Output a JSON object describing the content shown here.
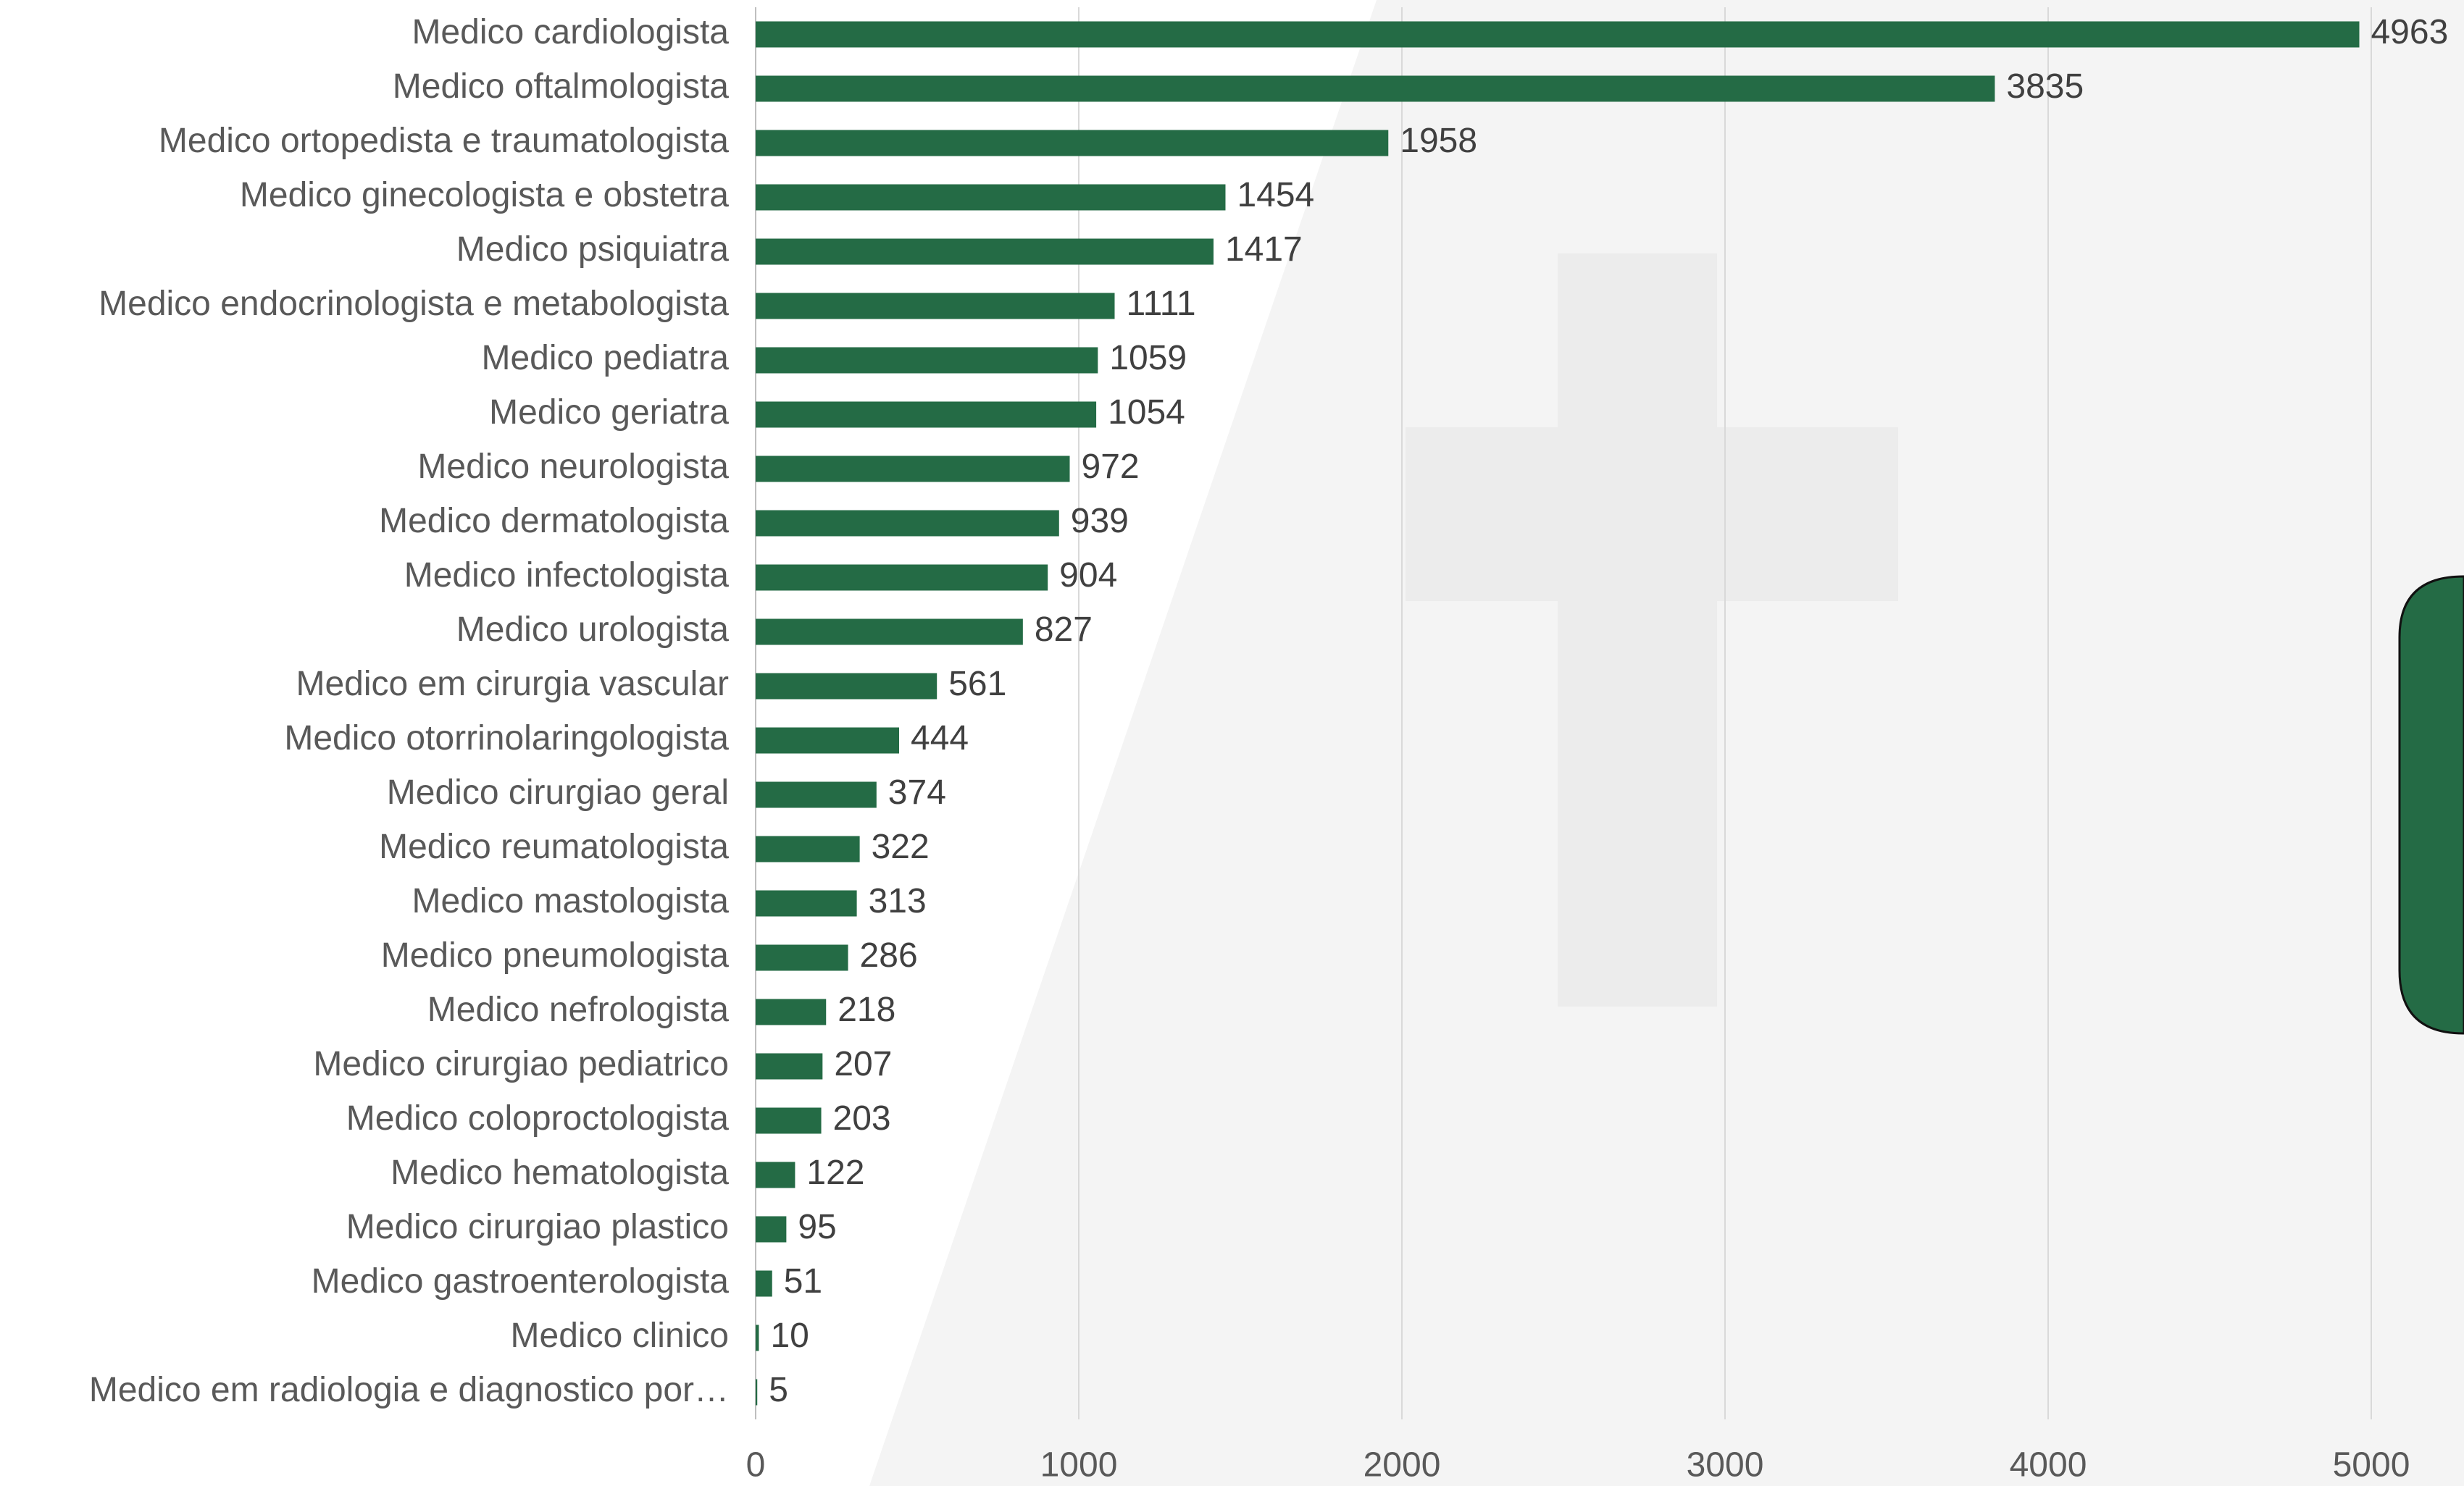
{
  "chart_data": {
    "type": "bar",
    "orientation": "horizontal",
    "categories": [
      "Medico cardiologista",
      "Medico oftalmologista",
      "Medico ortopedista e traumatologista",
      "Medico ginecologista e obstetra",
      "Medico psiquiatra",
      "Medico endocrinologista e metabologista",
      "Medico pediatra",
      "Medico geriatra",
      "Medico neurologista",
      "Medico dermatologista",
      "Medico infectologista",
      "Medico urologista",
      "Medico em cirurgia vascular",
      "Medico otorrinolaringologista",
      "Medico cirurgiao geral",
      "Medico reumatologista",
      "Medico mastologista",
      "Medico pneumologista",
      "Medico nefrologista",
      "Medico cirurgiao pediatrico",
      "Medico coloproctologista",
      "Medico hematologista",
      "Medico cirurgiao plastico",
      "Medico gastroenterologista",
      "Medico clinico",
      "Medico em radiologia e diagnostico por…"
    ],
    "values": [
      4963,
      3835,
      1958,
      1454,
      1417,
      1111,
      1059,
      1054,
      972,
      939,
      904,
      827,
      561,
      444,
      374,
      322,
      313,
      286,
      218,
      207,
      203,
      122,
      95,
      51,
      10,
      5
    ],
    "color": "#246b45",
    "xlim": [
      0,
      5000
    ],
    "xticks": [
      0,
      1000,
      2000,
      3000,
      4000,
      5000
    ],
    "grid": true
  }
}
